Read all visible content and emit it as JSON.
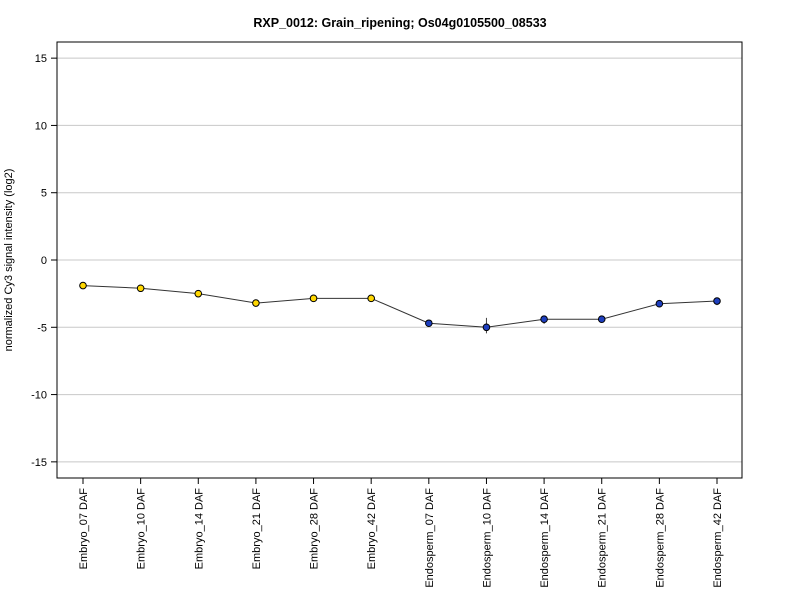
{
  "chart_data": {
    "type": "line",
    "title": "RXP_0012: Grain_ripening; Os04g0105500_08533",
    "xlabel": "",
    "ylabel": "normalized Cy3 signal intensity (log2)",
    "ylim": [
      -16.2,
      16.2
    ],
    "yticks": [
      -15,
      -10,
      -5,
      0,
      5,
      10,
      15
    ],
    "grid": "horizontal",
    "legend": "none",
    "categories": [
      "Embryo_07 DAF",
      "Embryo_10 DAF",
      "Embryo_14 DAF",
      "Embryo_21 DAF",
      "Embryo_28 DAF",
      "Embryo_42 DAF",
      "Endosperm_07 DAF",
      "Endosperm_10 DAF",
      "Endosperm_14 DAF",
      "Endosperm_21 DAF",
      "Endosperm_28 DAF",
      "Endosperm_42 DAF"
    ],
    "series": [
      {
        "values": [
          -1.9,
          -2.1,
          -2.5,
          -3.2,
          -2.85,
          -2.85,
          -4.7,
          -5.0,
          -4.4,
          -4.4,
          -3.25,
          -3.05
        ],
        "error_low": [
          0,
          0,
          0,
          0,
          0,
          0,
          0,
          0.45,
          0.35,
          0.2,
          0,
          0.3
        ],
        "error_high": [
          0,
          0,
          0,
          0,
          0,
          0,
          0,
          0.7,
          0.2,
          0.2,
          0,
          0.1
        ],
        "point_colors": [
          "#ffd700",
          "#ffd700",
          "#ffd700",
          "#ffd700",
          "#ffd700",
          "#ffd700",
          "#1e3fbf",
          "#1e3fbf",
          "#1e3fbf",
          "#1e3fbf",
          "#1e3fbf",
          "#1e3fbf"
        ]
      }
    ],
    "colors": {
      "line": "#333333",
      "grid": "#c8c8c8",
      "frame": "#000000",
      "point_outline": "#000000"
    }
  }
}
